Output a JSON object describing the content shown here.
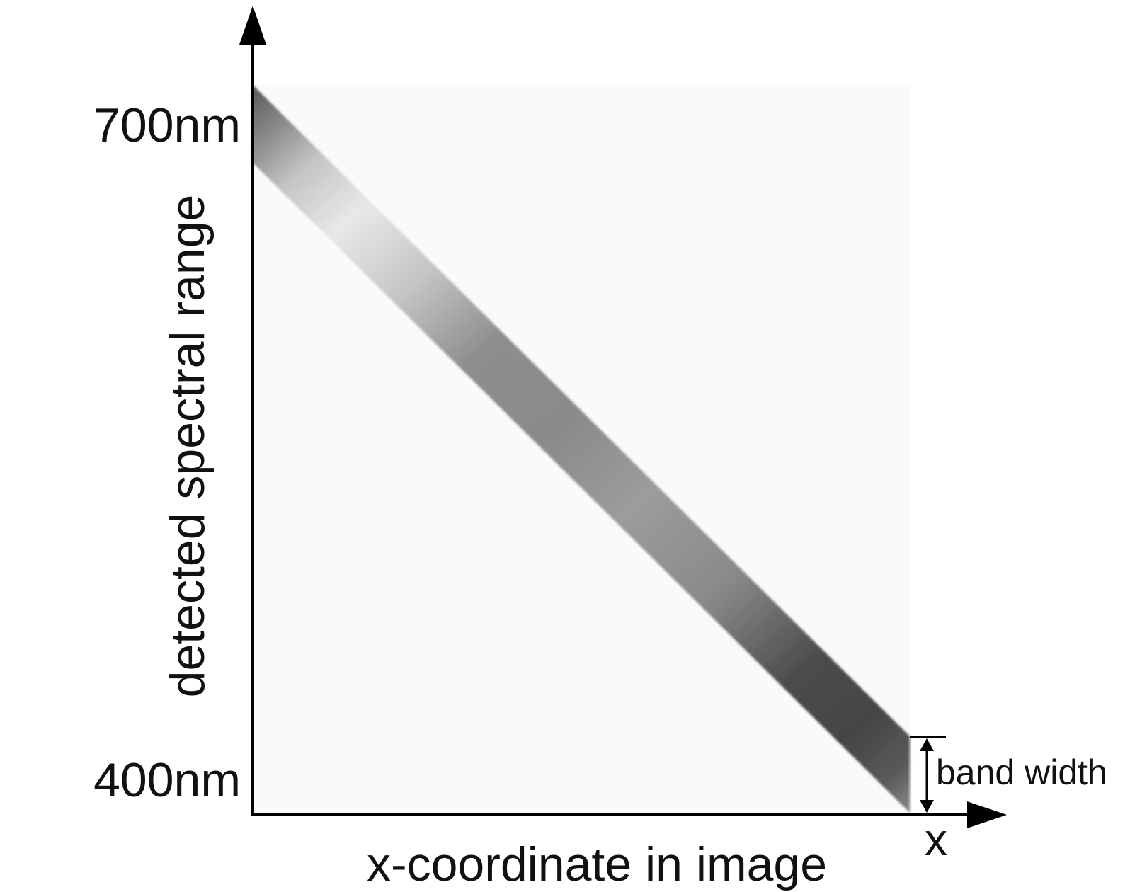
{
  "diagram": {
    "y_axis": {
      "label": "detected spectral range",
      "top_tick": "700nm",
      "bottom_tick": "400nm"
    },
    "x_axis": {
      "label": "x-coordinate in image",
      "symbol": "x"
    },
    "annotation": {
      "label": "band width"
    },
    "colors": {
      "plot_background": "#fafafa",
      "axis": "#000000",
      "band_dark": "#454545",
      "band_mid": "#969696",
      "band_light": "#e8e8e8"
    }
  }
}
